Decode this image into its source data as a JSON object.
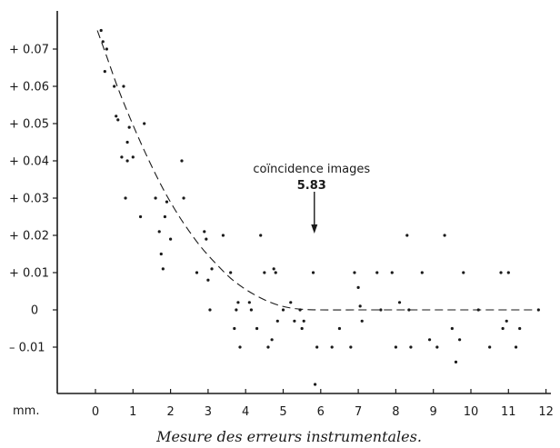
{
  "chart_data": {
    "type": "scatter",
    "title": "",
    "caption": "Mesure des erreurs instrumentales.",
    "x_unit_label": "mm.",
    "xlabel": "",
    "ylabel": "",
    "xlim": [
      -1.4,
      12.4
    ],
    "ylim": [
      -0.021,
      0.0795
    ],
    "grid": false,
    "x_ticks": [
      {
        "value": 0,
        "label": "0"
      },
      {
        "value": 1,
        "label": "1"
      },
      {
        "value": 2,
        "label": "2"
      },
      {
        "value": 3,
        "label": "3"
      },
      {
        "value": 4,
        "label": "4"
      },
      {
        "value": 5,
        "label": "5"
      },
      {
        "value": 6,
        "label": "6"
      },
      {
        "value": 7,
        "label": "7"
      },
      {
        "value": 8,
        "label": "8"
      },
      {
        "value": 9,
        "label": "9"
      },
      {
        "value": 10,
        "label": "10"
      },
      {
        "value": 11,
        "label": "11"
      },
      {
        "value": 12,
        "label": "12"
      }
    ],
    "y_ticks": [
      {
        "value": 0.07,
        "label": "+ 0.07"
      },
      {
        "value": 0.06,
        "label": "+ 0.06"
      },
      {
        "value": 0.05,
        "label": "+ 0.05"
      },
      {
        "value": 0.04,
        "label": "+ 0.04"
      },
      {
        "value": 0.03,
        "label": "+ 0.03"
      },
      {
        "value": 0.02,
        "label": "+ 0.02"
      },
      {
        "value": 0.01,
        "label": "+ 0.01"
      },
      {
        "value": 0,
        "label": "0"
      },
      {
        "value": -0.01,
        "label": "– 0.01"
      }
    ],
    "annotation": {
      "line1": "coïncidence images",
      "line2": "5.83",
      "x": 5.83,
      "arrow_from_y": 0.03,
      "arrow_to_y": 0.02
    },
    "fit_curve": {
      "style": "dashed",
      "points": [
        [
          0.05,
          0.075
        ],
        [
          0.3,
          0.068
        ],
        [
          0.6,
          0.0595
        ],
        [
          0.9,
          0.052
        ],
        [
          1.2,
          0.045
        ],
        [
          1.5,
          0.0385
        ],
        [
          1.8,
          0.0325
        ],
        [
          2.1,
          0.0272
        ],
        [
          2.4,
          0.0225
        ],
        [
          2.8,
          0.017
        ],
        [
          3.2,
          0.0125
        ],
        [
          3.6,
          0.0085
        ],
        [
          4.0,
          0.0055
        ],
        [
          4.4,
          0.0032
        ],
        [
          4.8,
          0.0015
        ],
        [
          5.2,
          0.0005
        ],
        [
          5.6,
          0.0001
        ],
        [
          6.0,
          0.0
        ],
        [
          7.0,
          0.0
        ],
        [
          8.0,
          0.0
        ],
        [
          9.0,
          0.0
        ],
        [
          10.0,
          0.0
        ],
        [
          11.0,
          0.0
        ],
        [
          11.7,
          0.0
        ]
      ]
    },
    "series": [
      {
        "x": [
          0.15,
          0.2,
          0.25,
          0.3,
          0.5,
          0.55,
          0.6,
          0.7,
          0.75,
          0.8,
          0.85,
          0.85,
          0.9,
          1.0,
          1.2,
          1.3,
          1.6,
          1.7,
          1.75,
          1.8,
          1.85,
          1.9,
          2.0,
          2.3,
          2.35,
          2.7,
          2.9,
          2.95,
          3.0,
          3.05,
          3.1,
          3.4,
          3.6,
          3.7,
          3.75,
          3.8,
          3.85,
          4.1,
          4.15,
          4.3,
          4.4,
          4.5,
          4.6,
          4.7,
          4.75,
          4.8,
          4.85,
          5.0,
          5.2,
          5.3,
          5.45,
          5.5,
          5.55,
          5.8,
          5.85,
          5.9,
          6.3,
          6.5,
          6.8,
          6.9,
          7.0,
          7.05,
          7.1,
          7.5,
          7.6,
          7.9,
          8.0,
          8.1,
          8.3,
          8.35,
          8.4,
          8.7,
          8.9,
          9.1,
          9.3,
          9.5,
          9.6,
          9.7,
          9.8,
          10.2,
          10.5,
          10.8,
          10.85,
          10.95,
          11.0,
          11.2,
          11.3,
          11.8
        ],
        "y": [
          0.075,
          0.072,
          0.064,
          0.07,
          0.06,
          0.052,
          0.051,
          0.041,
          0.06,
          0.03,
          0.04,
          0.045,
          0.049,
          0.041,
          0.025,
          0.05,
          0.03,
          0.021,
          0.015,
          0.011,
          0.025,
          0.029,
          0.019,
          0.04,
          0.03,
          0.01,
          0.021,
          0.019,
          0.008,
          0.0,
          0.011,
          0.02,
          0.01,
          -0.005,
          0.0,
          0.002,
          -0.01,
          0.002,
          0.0,
          -0.005,
          0.02,
          0.01,
          -0.01,
          -0.008,
          0.011,
          0.01,
          -0.003,
          0.0,
          0.002,
          -0.003,
          0.0,
          -0.005,
          -0.003,
          0.01,
          -0.02,
          -0.01,
          -0.01,
          -0.005,
          -0.01,
          0.01,
          0.006,
          0.001,
          -0.003,
          0.01,
          0.0,
          0.01,
          -0.01,
          0.002,
          0.02,
          0.0,
          -0.01,
          0.01,
          -0.008,
          -0.01,
          0.02,
          -0.005,
          -0.014,
          -0.008,
          0.01,
          0.0,
          -0.01,
          0.01,
          -0.005,
          -0.003,
          0.01,
          -0.01,
          -0.005,
          0.0
        ]
      }
    ]
  }
}
